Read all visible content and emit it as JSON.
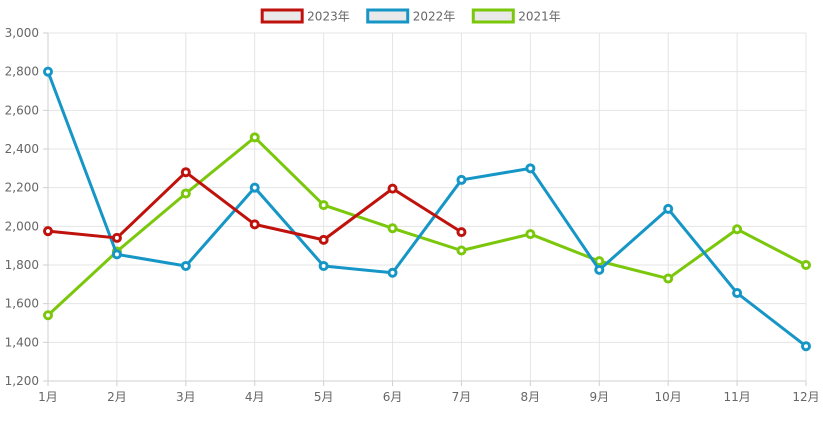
{
  "chart_data": {
    "type": "line",
    "categories": [
      "1月",
      "2月",
      "3月",
      "4月",
      "5月",
      "6月",
      "7月",
      "8月",
      "9月",
      "10月",
      "11月",
      "12月"
    ],
    "ylim": [
      1200,
      3000
    ],
    "yticks": [
      1200,
      1400,
      1600,
      1800,
      2000,
      2200,
      2400,
      2600,
      2800,
      3000
    ],
    "ytick_labels": [
      "1,200",
      "1,400",
      "1,600",
      "1,800",
      "2,000",
      "2,200",
      "2,400",
      "2,600",
      "2,800",
      "3,000"
    ],
    "grid": true,
    "legend_position": "top-center",
    "series": [
      {
        "name": "2023年",
        "color": "#c0120c",
        "values": [
          1975,
          1940,
          2280,
          2010,
          1930,
          2195,
          1970,
          null,
          null,
          null,
          null,
          null
        ]
      },
      {
        "name": "2022年",
        "color": "#1596c6",
        "values": [
          2800,
          1855,
          1795,
          2200,
          1795,
          1760,
          2240,
          2300,
          1775,
          2090,
          1655,
          1380
        ]
      },
      {
        "name": "2021年",
        "color": "#7ac70c",
        "values": [
          1540,
          1870,
          2170,
          2460,
          2110,
          1990,
          1875,
          1960,
          1820,
          1730,
          1985,
          1800
        ]
      }
    ]
  }
}
